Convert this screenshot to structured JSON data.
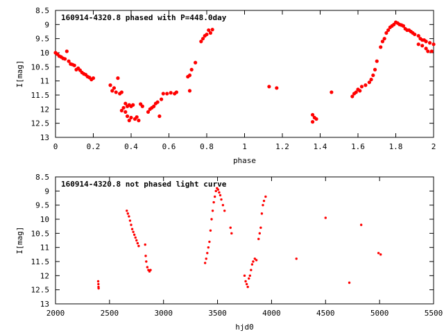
{
  "chart_data": [
    {
      "type": "scatter",
      "title": "160914-4320.8 phased with P=448.0day",
      "xlabel": "phase",
      "ylabel": "I[mag]",
      "xlim": [
        0,
        2
      ],
      "ylim": [
        8.5,
        13
      ],
      "y_inverted": true,
      "xticks": [
        0,
        0.2,
        0.4,
        0.6,
        0.8,
        1,
        1.2,
        1.4,
        1.6,
        1.8,
        2
      ],
      "yticks": [
        8.5,
        9,
        9.5,
        10,
        10.5,
        11,
        11.5,
        12,
        12.5,
        13
      ],
      "grid": false,
      "marker_color": "#ff0000",
      "points": [
        [
          0.0,
          10.0
        ],
        [
          0.01,
          10.05
        ],
        [
          0.02,
          10.12
        ],
        [
          0.03,
          10.15
        ],
        [
          0.04,
          10.2
        ],
        [
          0.05,
          10.22
        ],
        [
          0.06,
          9.95
        ],
        [
          0.07,
          10.3
        ],
        [
          0.08,
          10.4
        ],
        [
          0.09,
          10.42
        ],
        [
          0.1,
          10.45
        ],
        [
          0.11,
          10.6
        ],
        [
          0.12,
          10.55
        ],
        [
          0.13,
          10.62
        ],
        [
          0.14,
          10.7
        ],
        [
          0.15,
          10.75
        ],
        [
          0.16,
          10.78
        ],
        [
          0.17,
          10.85
        ],
        [
          0.18,
          10.88
        ],
        [
          0.19,
          10.95
        ],
        [
          0.2,
          10.9
        ],
        [
          0.29,
          11.15
        ],
        [
          0.3,
          11.35
        ],
        [
          0.31,
          11.25
        ],
        [
          0.32,
          11.4
        ],
        [
          0.33,
          10.9
        ],
        [
          0.34,
          11.45
        ],
        [
          0.35,
          11.4
        ],
        [
          0.35,
          12.05
        ],
        [
          0.36,
          11.95
        ],
        [
          0.37,
          12.1
        ],
        [
          0.37,
          11.8
        ],
        [
          0.38,
          11.9
        ],
        [
          0.38,
          12.25
        ],
        [
          0.39,
          11.85
        ],
        [
          0.39,
          12.4
        ],
        [
          0.4,
          11.9
        ],
        [
          0.4,
          12.3
        ],
        [
          0.41,
          11.85
        ],
        [
          0.42,
          12.35
        ],
        [
          0.43,
          12.28
        ],
        [
          0.44,
          12.4
        ],
        [
          0.45,
          11.82
        ],
        [
          0.46,
          11.9
        ],
        [
          0.49,
          12.1
        ],
        [
          0.5,
          12.0
        ],
        [
          0.51,
          11.95
        ],
        [
          0.52,
          11.9
        ],
        [
          0.53,
          11.8
        ],
        [
          0.54,
          11.75
        ],
        [
          0.55,
          12.25
        ],
        [
          0.56,
          11.65
        ],
        [
          0.57,
          11.45
        ],
        [
          0.59,
          11.45
        ],
        [
          0.61,
          11.42
        ],
        [
          0.63,
          11.45
        ],
        [
          0.64,
          11.4
        ],
        [
          0.7,
          10.85
        ],
        [
          0.71,
          11.35
        ],
        [
          0.71,
          10.8
        ],
        [
          0.72,
          10.6
        ],
        [
          0.74,
          10.35
        ],
        [
          0.77,
          9.6
        ],
        [
          0.78,
          9.5
        ],
        [
          0.79,
          9.4
        ],
        [
          0.8,
          9.35
        ],
        [
          0.81,
          9.2
        ],
        [
          0.82,
          9.3
        ],
        [
          0.83,
          9.18
        ],
        [
          1.13,
          11.2
        ],
        [
          1.17,
          11.25
        ],
        [
          1.36,
          12.2
        ],
        [
          1.36,
          12.45
        ],
        [
          1.37,
          12.3
        ],
        [
          1.38,
          12.35
        ],
        [
          1.46,
          11.4
        ],
        [
          1.57,
          11.55
        ],
        [
          1.58,
          11.45
        ],
        [
          1.59,
          11.4
        ],
        [
          1.6,
          11.3
        ],
        [
          1.61,
          11.35
        ],
        [
          1.62,
          11.2
        ],
        [
          1.64,
          11.15
        ],
        [
          1.66,
          11.05
        ],
        [
          1.67,
          10.95
        ],
        [
          1.68,
          10.8
        ],
        [
          1.69,
          10.6
        ],
        [
          1.7,
          10.3
        ],
        [
          1.72,
          9.8
        ],
        [
          1.73,
          9.6
        ],
        [
          1.74,
          9.5
        ],
        [
          1.75,
          9.3
        ],
        [
          1.76,
          9.2
        ],
        [
          1.77,
          9.1
        ],
        [
          1.78,
          9.05
        ],
        [
          1.79,
          9.0
        ],
        [
          1.8,
          8.92
        ],
        [
          1.81,
          8.95
        ],
        [
          1.82,
          9.0
        ],
        [
          1.83,
          9.02
        ],
        [
          1.84,
          9.05
        ],
        [
          1.85,
          9.15
        ],
        [
          1.86,
          9.2
        ],
        [
          1.87,
          9.2
        ],
        [
          1.88,
          9.25
        ],
        [
          1.89,
          9.3
        ],
        [
          1.9,
          9.35
        ],
        [
          1.92,
          9.4
        ],
        [
          1.93,
          9.5
        ],
        [
          1.94,
          9.55
        ],
        [
          1.95,
          9.55
        ],
        [
          1.96,
          9.6
        ],
        [
          1.92,
          9.7
        ],
        [
          1.94,
          9.75
        ],
        [
          1.96,
          9.85
        ],
        [
          1.97,
          9.95
        ],
        [
          1.98,
          9.65
        ],
        [
          1.99,
          9.95
        ],
        [
          2.0,
          9.7
        ]
      ]
    },
    {
      "type": "scatter",
      "title": "160914-4320.8 not phased light curve",
      "xlabel": "hjd0",
      "ylabel": "I[mag]",
      "xlim": [
        2000,
        5500
      ],
      "ylim": [
        8.5,
        13
      ],
      "y_inverted": true,
      "xticks": [
        2000,
        2500,
        3000,
        3500,
        4000,
        4500,
        5000,
        5500
      ],
      "yticks": [
        8.5,
        9,
        9.5,
        10,
        10.5,
        11,
        11.5,
        12,
        12.5,
        13
      ],
      "grid": false,
      "marker_color": "#ff0000",
      "points": [
        [
          2395,
          12.2
        ],
        [
          2397,
          12.3
        ],
        [
          2398,
          12.4
        ],
        [
          2399,
          12.45
        ],
        [
          2660,
          9.7
        ],
        [
          2670,
          9.8
        ],
        [
          2680,
          9.9
        ],
        [
          2690,
          10.05
        ],
        [
          2700,
          10.2
        ],
        [
          2710,
          10.35
        ],
        [
          2720,
          10.45
        ],
        [
          2730,
          10.55
        ],
        [
          2740,
          10.65
        ],
        [
          2750,
          10.75
        ],
        [
          2760,
          10.85
        ],
        [
          2770,
          10.95
        ],
        [
          2830,
          10.9
        ],
        [
          2835,
          11.3
        ],
        [
          2840,
          11.5
        ],
        [
          2850,
          11.7
        ],
        [
          2860,
          11.8
        ],
        [
          2870,
          11.85
        ],
        [
          2880,
          11.8
        ],
        [
          3385,
          11.55
        ],
        [
          3395,
          11.4
        ],
        [
          3405,
          11.2
        ],
        [
          3415,
          11.0
        ],
        [
          3425,
          10.8
        ],
        [
          3435,
          10.4
        ],
        [
          3445,
          10.0
        ],
        [
          3455,
          9.7
        ],
        [
          3465,
          9.4
        ],
        [
          3475,
          9.2
        ],
        [
          3485,
          9.0
        ],
        [
          3495,
          8.9
        ],
        [
          3505,
          8.95
        ],
        [
          3515,
          9.05
        ],
        [
          3525,
          9.15
        ],
        [
          3535,
          9.3
        ],
        [
          3550,
          9.5
        ],
        [
          3565,
          9.7
        ],
        [
          3620,
          10.3
        ],
        [
          3630,
          10.5
        ],
        [
          3750,
          12.0
        ],
        [
          3760,
          12.2
        ],
        [
          3770,
          12.3
        ],
        [
          3780,
          12.4
        ],
        [
          3790,
          12.1
        ],
        [
          3800,
          12.0
        ],
        [
          3810,
          11.8
        ],
        [
          3820,
          11.6
        ],
        [
          3830,
          11.5
        ],
        [
          3845,
          11.4
        ],
        [
          3860,
          11.45
        ],
        [
          3880,
          10.7
        ],
        [
          3890,
          10.5
        ],
        [
          3900,
          10.3
        ],
        [
          3910,
          9.8
        ],
        [
          3920,
          9.5
        ],
        [
          3930,
          9.35
        ],
        [
          3945,
          9.2
        ],
        [
          4230,
          11.4
        ],
        [
          4500,
          9.95
        ],
        [
          4720,
          12.25
        ],
        [
          4830,
          10.2
        ],
        [
          4990,
          11.2
        ],
        [
          5010,
          11.25
        ]
      ]
    }
  ]
}
